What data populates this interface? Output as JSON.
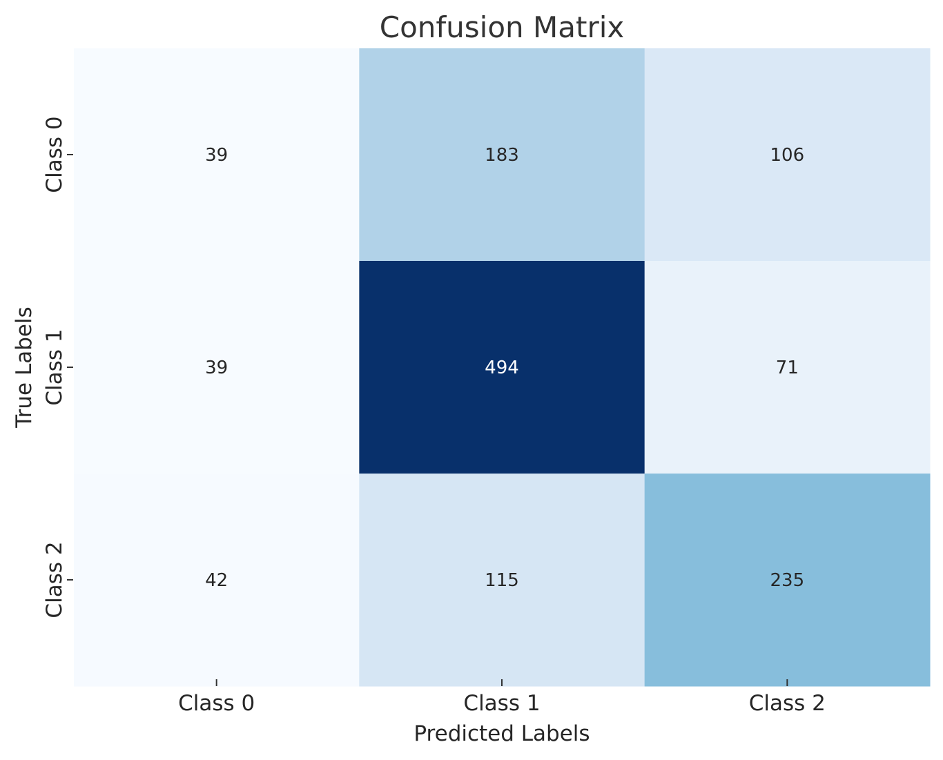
{
  "chart_data": {
    "type": "heatmap",
    "title": "Confusion Matrix",
    "xlabel": "Predicted Labels",
    "ylabel": "True Labels",
    "x_categories": [
      "Class 0",
      "Class 1",
      "Class 2"
    ],
    "y_categories": [
      "Class 0",
      "Class 1",
      "Class 2"
    ],
    "values": [
      [
        39,
        183,
        106
      ],
      [
        39,
        494,
        71
      ],
      [
        42,
        115,
        235
      ]
    ],
    "colormap": "Blues",
    "value_range": [
      39,
      494
    ],
    "colorbar": false,
    "grid": false,
    "annotations_shown": true,
    "colors": {
      "annotation_dark": "#262626",
      "annotation_light": "#ffffff",
      "text": "#333333",
      "tick": "#333333"
    }
  }
}
